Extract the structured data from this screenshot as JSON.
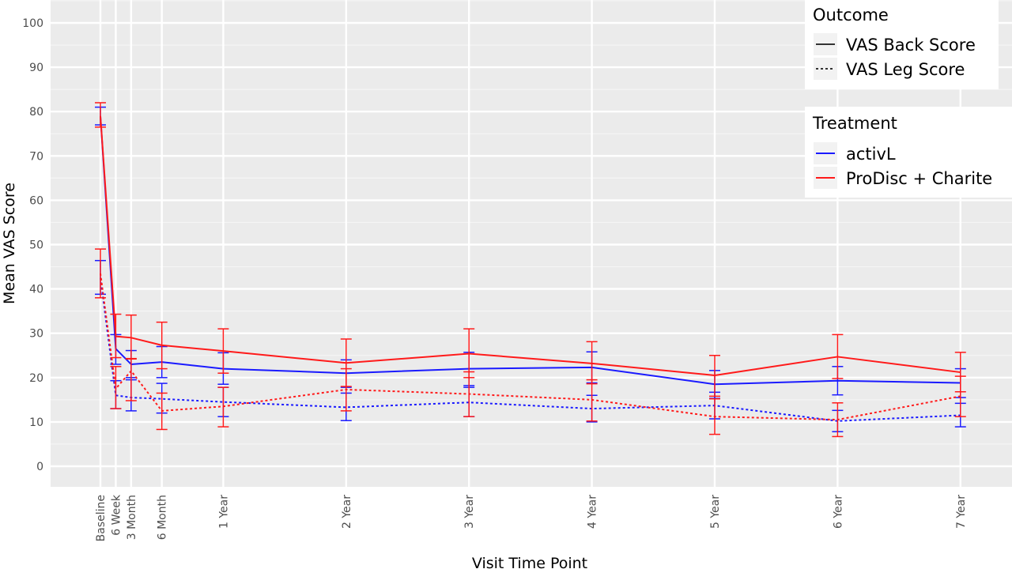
{
  "chart_data": {
    "type": "line",
    "title": "",
    "xlabel": "Visit Time Point",
    "ylabel": "Mean VAS Score",
    "ylim": [
      -5,
      105
    ],
    "yticks": [
      0,
      10,
      20,
      30,
      40,
      50,
      60,
      70,
      80,
      90,
      100
    ],
    "grid": true,
    "x_axis": "time (months), categorical tick labels",
    "categories": [
      "Baseline",
      "6 Week",
      "3 Month",
      "6 Month",
      "1 Year",
      "2 Year",
      "3 Year",
      "4 Year",
      "5 Year",
      "6 Year",
      "7 Year"
    ],
    "x_months": [
      0,
      1.5,
      3,
      6,
      12,
      24,
      36,
      48,
      60,
      72,
      84
    ],
    "legends": [
      {
        "title": "Outcome",
        "position": "top-right",
        "entries": [
          {
            "label": "VAS Back Score",
            "linestyle": "solid"
          },
          {
            "label": "VAS Leg Score",
            "linestyle": "dotted"
          }
        ]
      },
      {
        "title": "Treatment",
        "position": "right",
        "entries": [
          {
            "label": "activL",
            "color": "#1a1aff"
          },
          {
            "label": "ProDisc + Charite",
            "color": "#ff1a1a"
          }
        ]
      }
    ],
    "series": [
      {
        "treatment": "activL",
        "outcome": "VAS Back Score",
        "color": "#1a1aff",
        "linestyle": "solid",
        "values": [
          79,
          26.5,
          23,
          23.5,
          22,
          21,
          22,
          22.3,
          18.5,
          19.3,
          18.8
        ],
        "err_low": [
          77,
          23,
          20,
          20,
          18.5,
          17.8,
          18.2,
          18.8,
          15.3,
          16.1,
          15.5
        ],
        "err_high": [
          81,
          29.7,
          26.1,
          27,
          25.6,
          24,
          25.7,
          25.8,
          21.6,
          22.5,
          22
        ]
      },
      {
        "treatment": "activL",
        "outcome": "VAS Leg Score",
        "color": "#1a1aff",
        "linestyle": "dotted",
        "values": [
          42.5,
          16,
          15.5,
          15.2,
          14.5,
          13.3,
          14.4,
          13,
          13.7,
          10.2,
          11.5
        ],
        "err_low": [
          38.8,
          13,
          12.5,
          12,
          11.2,
          10.3,
          11.2,
          10,
          10.7,
          7.8,
          8.9
        ],
        "err_high": [
          46.4,
          19.3,
          19.5,
          18.7,
          17.8,
          16.5,
          17.8,
          16,
          16.7,
          12.6,
          14.2
        ]
      },
      {
        "treatment": "ProDisc + Charite",
        "outcome": "VAS Back Score",
        "color": "#ff1a1a",
        "linestyle": "solid",
        "values": [
          79,
          29.3,
          29,
          27.3,
          26,
          23.3,
          25.4,
          23.2,
          20.5,
          24.7,
          21.2
        ],
        "err_low": [
          76.5,
          24.5,
          24.2,
          22,
          21,
          18,
          20,
          18.6,
          15.8,
          19.8,
          16.8
        ],
        "err_high": [
          82,
          34.3,
          34.1,
          32.5,
          31,
          28.7,
          31,
          28.1,
          25,
          29.7,
          25.7
        ]
      },
      {
        "treatment": "ProDisc + Charite",
        "outcome": "VAS Leg Score",
        "color": "#ff1a1a",
        "linestyle": "dotted",
        "values": [
          43.5,
          17.5,
          21.5,
          12.5,
          13.5,
          17.3,
          16.3,
          15,
          11.2,
          10.5,
          15.8
        ],
        "err_low": [
          38,
          13,
          14.8,
          8.3,
          8.9,
          12.5,
          11.2,
          10.2,
          7.2,
          6.7,
          11.2
        ],
        "err_high": [
          49,
          22.5,
          24.3,
          16.5,
          17.8,
          22,
          21.3,
          19.5,
          15.2,
          14.3,
          20.3
        ]
      }
    ]
  }
}
